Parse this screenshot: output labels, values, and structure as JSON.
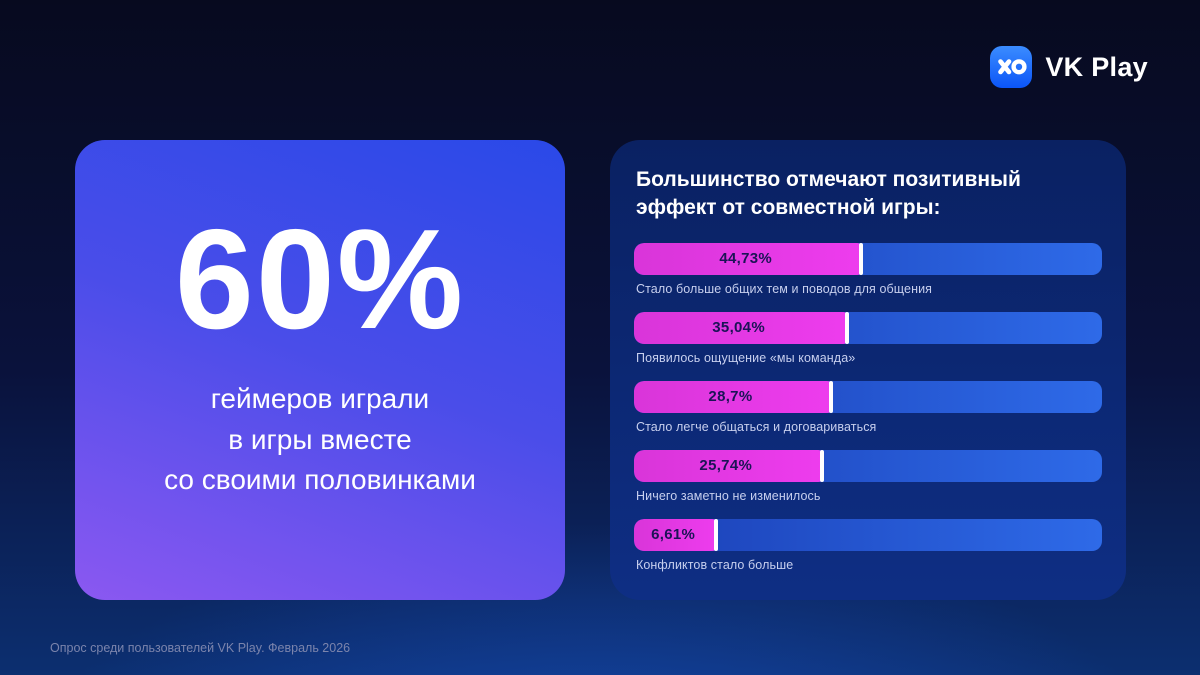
{
  "logo": {
    "text": "VK Play"
  },
  "left_card": {
    "stat": "60%",
    "lines": [
      "геймеров играли",
      "в игры вместе",
      "со своими половинками"
    ]
  },
  "chart_data": {
    "type": "bar",
    "orientation": "horizontal",
    "title": "Большинство отмечают позитивный эффект от совместной игры:",
    "unit": "%",
    "bars": [
      {
        "value": 44.73,
        "value_display": "44,73%",
        "category": "Стало больше общих тем и поводов для общения",
        "fill_pct": 49
      },
      {
        "value": 35.04,
        "value_display": "35,04%",
        "category": "Появилось ощущение «мы команда»",
        "fill_pct": 46
      },
      {
        "value": 28.7,
        "value_display": "28,7%",
        "category": "Стало легче общаться и договариваться",
        "fill_pct": 42.5
      },
      {
        "value": 25.74,
        "value_display": "25,74%",
        "category": "Ничего заметно не изменилось",
        "fill_pct": 40.5
      },
      {
        "value": 6.61,
        "value_display": "6,61%",
        "category": "Конфликтов стало больше",
        "fill_pct": 18
      }
    ],
    "colors": {
      "fill": "#e33be3",
      "track_start": "#1b40b6",
      "track_end": "#2e6ae8",
      "value_text": "#1b1356"
    },
    "legend": "none",
    "grid": false
  },
  "footer": {
    "text": "Опрос среди пользователей VK Play. Февраль 2026"
  }
}
